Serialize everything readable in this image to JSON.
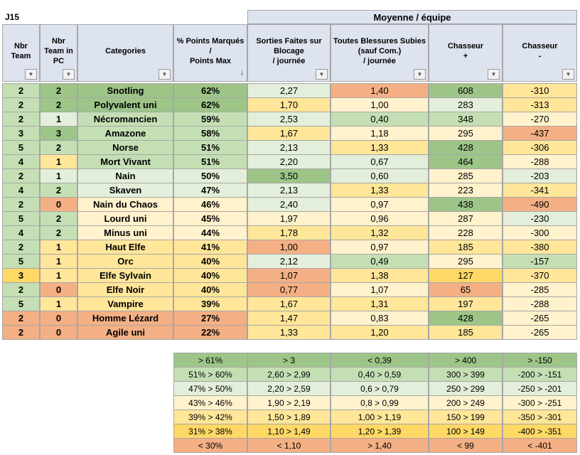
{
  "sheet_label": "J15",
  "group_header": "Moyenne / équipe",
  "columns": [
    {
      "lines": [
        "Nbr",
        "Team"
      ],
      "filter": true
    },
    {
      "lines": [
        "Nbr",
        "Team in",
        "PC"
      ],
      "filter": true
    },
    {
      "lines": [
        "Categories"
      ],
      "filter": true
    },
    {
      "lines": [
        "% Points Marqués",
        "/",
        "Points Max"
      ],
      "filter": false,
      "sort": "↓"
    },
    {
      "lines": [
        "Sorties Faites sur",
        "Blocage",
        "/ journée"
      ],
      "filter": true
    },
    {
      "lines": [
        "Toutes Blessures Subies",
        "(sauf Com.)",
        "/ journée"
      ],
      "filter": true
    },
    {
      "lines": [
        "Chasseur",
        "+"
      ],
      "filter": true
    },
    {
      "lines": [
        "Chasseur",
        "-"
      ],
      "filter": true
    }
  ],
  "colors": {
    "g1": "#9dc588",
    "g2": "#c5dfb4",
    "g3": "#e3efda",
    "y1": "#fff2cc",
    "y2": "#ffe699",
    "y3": "#ffd866",
    "o1": "#f4b084",
    "hdr": "#dde3ef"
  },
  "rows": [
    {
      "team": "2",
      "pc": "2",
      "cat": "Snotling",
      "pct": "62%",
      "sorties": "2,27",
      "bless": "1,40",
      "cp": "608",
      "cm": "-310",
      "bg": [
        "g2",
        "g1",
        "g1",
        "g1",
        "g3",
        "o1",
        "g1",
        "y2"
      ]
    },
    {
      "team": "2",
      "pc": "2",
      "cat": "Polyvalent uni",
      "pct": "62%",
      "sorties": "1,70",
      "bless": "1,00",
      "cp": "283",
      "cm": "-313",
      "bg": [
        "g2",
        "g1",
        "g1",
        "g1",
        "y2",
        "y1",
        "g3",
        "y2"
      ]
    },
    {
      "team": "2",
      "pc": "1",
      "cat": "Nécromancien",
      "pct": "59%",
      "sorties": "2,53",
      "bless": "0,40",
      "cp": "348",
      "cm": "-270",
      "bg": [
        "g2",
        "g3",
        "g2",
        "g2",
        "g3",
        "g2",
        "g2",
        "y1"
      ]
    },
    {
      "team": "3",
      "pc": "3",
      "cat": "Amazone",
      "pct": "58%",
      "sorties": "1,67",
      "bless": "1,18",
      "cp": "295",
      "cm": "-437",
      "bg": [
        "g2",
        "g1",
        "g2",
        "g2",
        "y2",
        "y1",
        "y1",
        "o1"
      ]
    },
    {
      "team": "5",
      "pc": "2",
      "cat": "Norse",
      "pct": "51%",
      "sorties": "2,13",
      "bless": "1,33",
      "cp": "428",
      "cm": "-306",
      "bg": [
        "g2",
        "g2",
        "g2",
        "g2",
        "g3",
        "y2",
        "g1",
        "y2"
      ]
    },
    {
      "team": "4",
      "pc": "1",
      "cat": "Mort Vivant",
      "pct": "51%",
      "sorties": "2,20",
      "bless": "0,67",
      "cp": "464",
      "cm": "-288",
      "bg": [
        "g2",
        "y2",
        "g2",
        "g2",
        "g3",
        "g3",
        "g1",
        "y1"
      ]
    },
    {
      "team": "2",
      "pc": "1",
      "cat": "Nain",
      "pct": "50%",
      "sorties": "3,50",
      "bless": "0,60",
      "cp": "285",
      "cm": "-203",
      "bg": [
        "g2",
        "g3",
        "g3",
        "g3",
        "g1",
        "g3",
        "y1",
        "g3"
      ]
    },
    {
      "team": "4",
      "pc": "2",
      "cat": "Skaven",
      "pct": "47%",
      "sorties": "2,13",
      "bless": "1,33",
      "cp": "223",
      "cm": "-341",
      "bg": [
        "g2",
        "g2",
        "g3",
        "g3",
        "g3",
        "y2",
        "y1",
        "y2"
      ]
    },
    {
      "team": "2",
      "pc": "0",
      "cat": "Nain du Chaos",
      "pct": "46%",
      "sorties": "2,40",
      "bless": "0,97",
      "cp": "438",
      "cm": "-490",
      "bg": [
        "g2",
        "o1",
        "y1",
        "y1",
        "g3",
        "y1",
        "g1",
        "o1"
      ]
    },
    {
      "team": "5",
      "pc": "2",
      "cat": "Lourd uni",
      "pct": "45%",
      "sorties": "1,97",
      "bless": "0,96",
      "cp": "287",
      "cm": "-230",
      "bg": [
        "g2",
        "g2",
        "y1",
        "y1",
        "y1",
        "y1",
        "y1",
        "g3"
      ]
    },
    {
      "team": "4",
      "pc": "2",
      "cat": "Minus uni",
      "pct": "44%",
      "sorties": "1,78",
      "bless": "1,32",
      "cp": "228",
      "cm": "-300",
      "bg": [
        "g2",
        "g2",
        "y1",
        "y1",
        "y2",
        "y2",
        "y1",
        "y1"
      ]
    },
    {
      "team": "2",
      "pc": "1",
      "cat": "Haut Elfe",
      "pct": "41%",
      "sorties": "1,00",
      "bless": "0,97",
      "cp": "185",
      "cm": "-380",
      "bg": [
        "g2",
        "y2",
        "y2",
        "y2",
        "o1",
        "y1",
        "y2",
        "y2"
      ]
    },
    {
      "team": "5",
      "pc": "1",
      "cat": "Orc",
      "pct": "40%",
      "sorties": "2,12",
      "bless": "0,49",
      "cp": "295",
      "cm": "-157",
      "bg": [
        "g2",
        "y2",
        "y2",
        "y2",
        "g3",
        "g2",
        "y1",
        "g2"
      ]
    },
    {
      "team": "3",
      "pc": "1",
      "cat": "Elfe Sylvain",
      "pct": "40%",
      "sorties": "1,07",
      "bless": "1,38",
      "cp": "127",
      "cm": "-370",
      "bg": [
        "y3",
        "y2",
        "y2",
        "y2",
        "o1",
        "y2",
        "y3",
        "y2"
      ]
    },
    {
      "team": "2",
      "pc": "0",
      "cat": "Elfe Noir",
      "pct": "40%",
      "sorties": "0,77",
      "bless": "1,07",
      "cp": "65",
      "cm": "-285",
      "bg": [
        "g2",
        "o1",
        "y2",
        "y2",
        "o1",
        "y1",
        "o1",
        "y1"
      ]
    },
    {
      "team": "5",
      "pc": "1",
      "cat": "Vampire",
      "pct": "39%",
      "sorties": "1,67",
      "bless": "1,31",
      "cp": "197",
      "cm": "-288",
      "bg": [
        "g2",
        "y2",
        "y2",
        "y2",
        "y2",
        "y2",
        "y2",
        "y1"
      ]
    },
    {
      "team": "2",
      "pc": "0",
      "cat": "Homme Lézard",
      "pct": "27%",
      "sorties": "1,47",
      "bless": "0,83",
      "cp": "428",
      "cm": "-265",
      "bg": [
        "o1",
        "o1",
        "o1",
        "o1",
        "y2",
        "y1",
        "g1",
        "y1"
      ]
    },
    {
      "team": "2",
      "pc": "0",
      "cat": "Agile uni",
      "pct": "22%",
      "sorties": "1,33",
      "bless": "1,20",
      "cp": "185",
      "cm": "-265",
      "bg": [
        "o1",
        "o1",
        "o1",
        "o1",
        "y2",
        "y2",
        "y2",
        "y1"
      ]
    }
  ],
  "legend": [
    {
      "bg": "g1",
      "cells": [
        "> 61%",
        "> 3",
        "< 0,39",
        "> 400",
        "> -150"
      ]
    },
    {
      "bg": "g2",
      "cells": [
        "51% > 60%",
        "2,60 > 2,99",
        "0,40 > 0,59",
        "300 > 399",
        "-200 > -151"
      ]
    },
    {
      "bg": "g3",
      "cells": [
        "47% > 50%",
        "2,20 > 2,59",
        "0,6 > 0,79",
        "250 > 299",
        "-250 > -201"
      ]
    },
    {
      "bg": "y1",
      "cells": [
        "43% > 46%",
        "1,90 > 2,19",
        "0,8 > 0,99",
        "200 > 249",
        "-300 > -251"
      ]
    },
    {
      "bg": "y2",
      "cells": [
        "39% > 42%",
        "1,50 > 1,89",
        "1,00 > 1,19",
        "150 > 199",
        "-350 > -301"
      ]
    },
    {
      "bg": "y3",
      "cells": [
        "31% > 38%",
        "1,10 > 1,49",
        "1,20 > 1,39",
        "100 > 149",
        "-400 > -351"
      ]
    },
    {
      "bg": "o1",
      "cells": [
        "< 30%",
        "< 1,10",
        "> 1,40",
        "< 99",
        "< -401"
      ]
    }
  ]
}
